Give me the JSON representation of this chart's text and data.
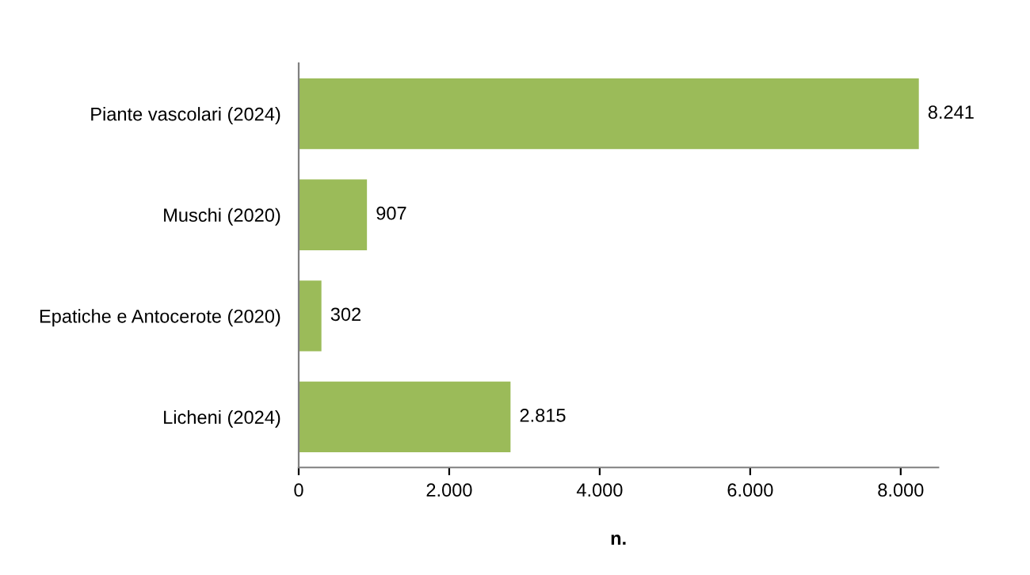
{
  "chart_data": {
    "type": "bar",
    "orientation": "horizontal",
    "xlabel": "n.",
    "categories": [
      "Piante vascolari (2024)",
      "Muschi (2020)",
      "Epatiche e Antocerote (2020)",
      "Licheni (2024)"
    ],
    "values": [
      8241,
      907,
      302,
      2815
    ],
    "value_labels": [
      "8.241",
      "907",
      "302",
      "2.815"
    ],
    "color": "#9bbb59",
    "xlim": [
      0,
      8500
    ],
    "xticks": [
      0,
      {
        "value": 2000,
        "label": "2.000"
      },
      {
        "value": 4000,
        "label": "4.000"
      },
      {
        "value": 6000,
        "label": "6.000"
      },
      {
        "value": 8000,
        "label": "8.000"
      }
    ],
    "grid": false
  }
}
